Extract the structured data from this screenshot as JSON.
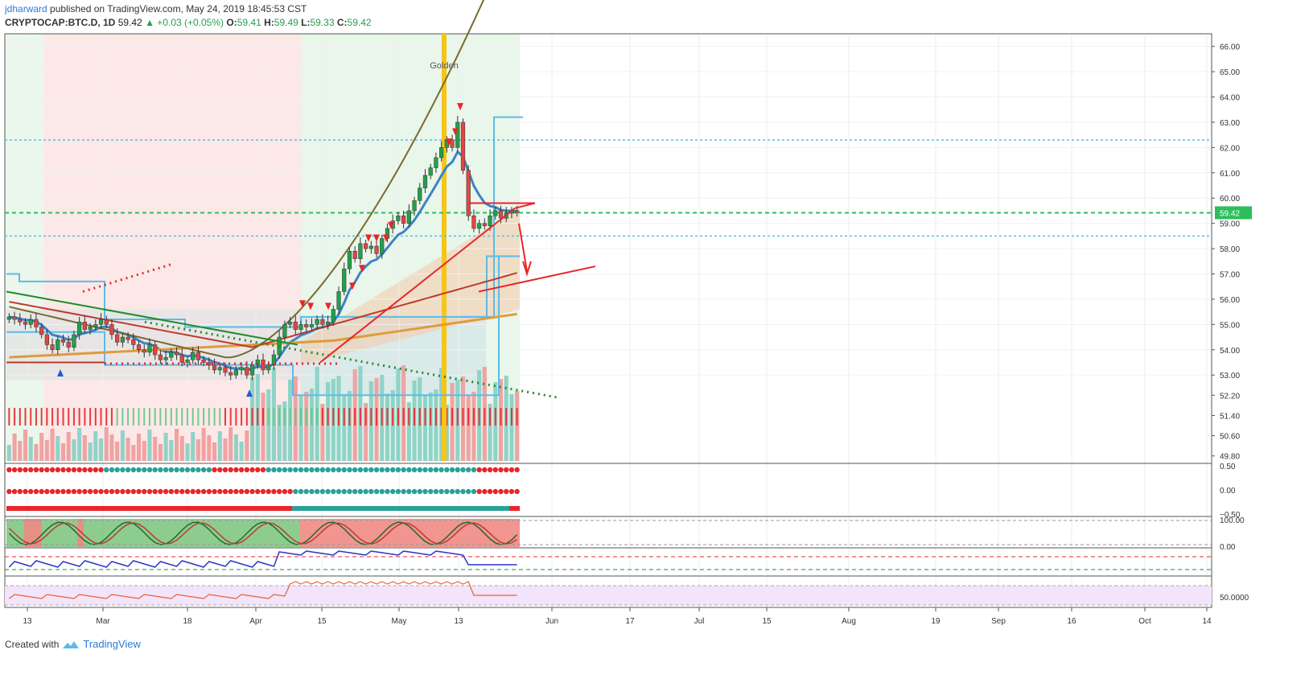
{
  "header": {
    "author": "jdharward",
    "published": "published on TradingView.com, May 24, 2019 18:45:53 CST",
    "symbol": "CRYPTOCAP:BTC.D, 1D",
    "last": "59.42",
    "change": "+0.03 (+0.05%)",
    "o_label": "O:",
    "o": "59.41",
    "h_label": "H:",
    "h": "59.49",
    "l_label": "L:",
    "l": "59.33",
    "c_label": "C:",
    "c": "59.42"
  },
  "footer": {
    "created_with": "Created with",
    "brand": "TradingView"
  },
  "colors": {
    "up": "#22a04b",
    "down": "#e0463f",
    "ema_blue": "#3d83c6",
    "cyan": "#5bbce6",
    "green_dotted": "#1f8c2c",
    "red": "#e8262a",
    "gold": "#f5c518",
    "orange": "#e09a3c",
    "teal": "#2aa198",
    "bg_red": "#fde8e8",
    "bg_green": "#e9f6ea",
    "bg_grey": "#e4e4e4"
  },
  "chart_data": {
    "type": "candlestick",
    "title": "CRYPTOCAP:BTC.D, 1D",
    "ylim": [
      49.6,
      66.5
    ],
    "y_ticks": [
      "66.00",
      "65.00",
      "64.00",
      "63.00",
      "62.00",
      "61.00",
      "60.00",
      "59.00",
      "58.00",
      "57.00",
      "56.00",
      "55.00",
      "54.00",
      "53.00",
      "52.20",
      "51.40",
      "50.60",
      "49.80"
    ],
    "last_price_label": "59.42",
    "x_ticks": [
      "13",
      "Mar",
      "18",
      "Apr",
      "15",
      "May",
      "13",
      "Jun",
      "17",
      "Jul",
      "15",
      "Aug",
      "19",
      "Sep",
      "16",
      "Oct",
      "14"
    ],
    "annotations": [
      "Golden"
    ],
    "indicator_ticks": {
      "pane1": [
        "0.50",
        "0.00",
        "−0.50"
      ],
      "pane2": [
        "100.00",
        "0.00"
      ],
      "pane4": [
        "50.0000"
      ]
    },
    "series": [
      {
        "name": "",
        "closes": [
          55.3,
          55.2,
          55.1,
          55.0,
          55.2,
          54.9,
          54.6,
          54.2,
          54.0,
          54.4,
          54.3,
          54.1,
          54.6,
          55.1,
          54.8,
          54.9,
          55.0,
          55.2,
          55.0,
          54.6,
          54.3,
          54.5,
          54.4,
          54.2,
          54.0,
          53.9,
          54.2,
          53.8,
          53.6,
          53.7,
          53.9,
          53.8,
          53.5,
          53.6,
          53.9,
          53.6,
          53.5,
          53.4,
          53.2,
          53.3,
          53.1,
          53.0,
          53.2,
          53.3,
          53.0,
          53.4,
          53.6,
          53.2,
          53.4,
          53.8,
          54.5,
          55.0,
          55.1,
          54.8,
          55.0,
          54.9,
          55.0,
          55.2,
          55.0,
          55.1,
          55.6,
          56.3,
          57.2,
          57.9,
          57.6,
          58.2,
          58.0,
          58.1,
          57.8,
          58.4,
          58.8,
          59.1,
          59.3,
          59.0,
          59.5,
          59.9,
          60.4,
          60.9,
          61.2,
          61.6,
          62.0,
          62.3,
          62.0,
          63.0,
          61.1,
          59.3,
          58.8,
          59.0,
          58.9,
          59.3,
          59.5,
          59.2,
          59.4,
          59.5,
          59.42
        ]
      }
    ]
  }
}
